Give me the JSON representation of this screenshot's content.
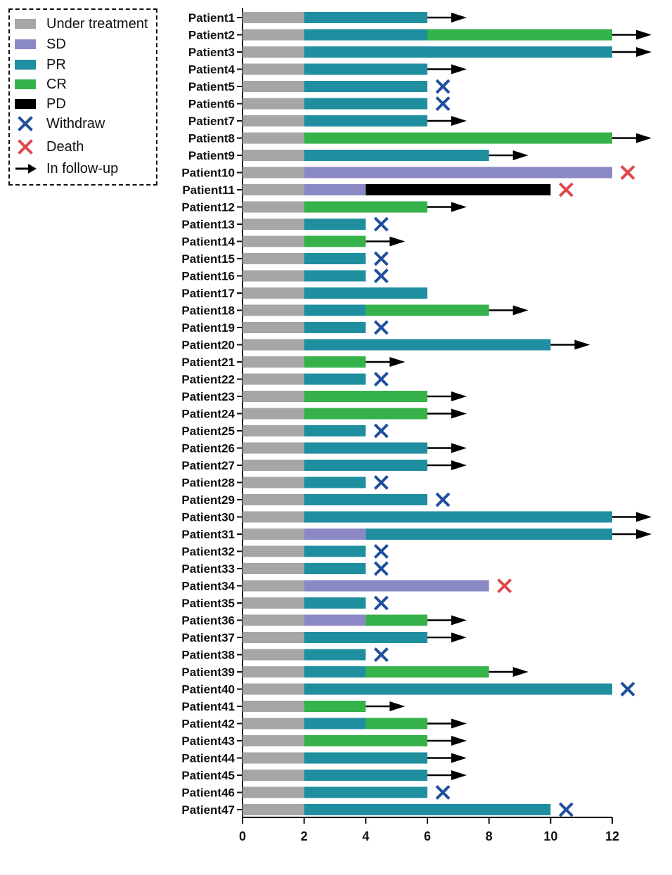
{
  "chart_data": {
    "type": "bar",
    "orientation": "horizontal",
    "stacked": true,
    "xlim": [
      0,
      12
    ],
    "xticks": [
      "0",
      "2",
      "4",
      "6",
      "8",
      "10",
      "12"
    ],
    "legend": {
      "placement": "top-left",
      "entries": [
        {
          "label": "Under treatment",
          "kind": "bar",
          "key": "UT"
        },
        {
          "label": "SD",
          "kind": "bar",
          "key": "SD"
        },
        {
          "label": "PR",
          "kind": "bar",
          "key": "PR"
        },
        {
          "label": "CR",
          "kind": "bar",
          "key": "CR"
        },
        {
          "label": "PD",
          "kind": "bar",
          "key": "PD"
        },
        {
          "label": "Withdraw",
          "kind": "marker",
          "key": "withdraw"
        },
        {
          "label": "Death",
          "kind": "marker",
          "key": "death"
        },
        {
          "label": "In follow-up",
          "kind": "marker",
          "key": "followup"
        }
      ]
    },
    "colors": {
      "UT": "#a6a6a8",
      "SD": "#8b88c6",
      "PR": "#1f8fa0",
      "CR": "#35b24a",
      "PD": "#000000",
      "withdraw": "#1f4e9c",
      "death": "#e04848",
      "followup": "#000000"
    },
    "patients": [
      {
        "label": "Patient1",
        "segments": [
          [
            "UT",
            0,
            2
          ],
          [
            "PR",
            2,
            6
          ]
        ],
        "end": "followup"
      },
      {
        "label": "Patient2",
        "segments": [
          [
            "UT",
            0,
            2
          ],
          [
            "PR",
            2,
            6
          ],
          [
            "CR",
            6,
            12
          ]
        ],
        "end": "followup"
      },
      {
        "label": "Patient3",
        "segments": [
          [
            "UT",
            0,
            2
          ],
          [
            "PR",
            2,
            12
          ]
        ],
        "end": "followup"
      },
      {
        "label": "Patient4",
        "segments": [
          [
            "UT",
            0,
            2
          ],
          [
            "PR",
            2,
            6
          ]
        ],
        "end": "followup"
      },
      {
        "label": "Patient5",
        "segments": [
          [
            "UT",
            0,
            2
          ],
          [
            "PR",
            2,
            6
          ]
        ],
        "end": "withdraw"
      },
      {
        "label": "Patient6",
        "segments": [
          [
            "UT",
            0,
            2
          ],
          [
            "PR",
            2,
            6
          ]
        ],
        "end": "withdraw"
      },
      {
        "label": "Patient7",
        "segments": [
          [
            "UT",
            0,
            2
          ],
          [
            "PR",
            2,
            6
          ]
        ],
        "end": "followup"
      },
      {
        "label": "Patient8",
        "segments": [
          [
            "UT",
            0,
            2
          ],
          [
            "CR",
            2,
            12
          ]
        ],
        "end": "followup"
      },
      {
        "label": "Patient9",
        "segments": [
          [
            "UT",
            0,
            2
          ],
          [
            "PR",
            2,
            8
          ]
        ],
        "end": "followup"
      },
      {
        "label": "Patient10",
        "segments": [
          [
            "UT",
            0,
            2
          ],
          [
            "SD",
            2,
            12
          ]
        ],
        "end": "death"
      },
      {
        "label": "Patient11",
        "segments": [
          [
            "UT",
            0,
            2
          ],
          [
            "SD",
            2,
            4
          ],
          [
            "PD",
            4,
            10
          ]
        ],
        "end": "death"
      },
      {
        "label": "Patient12",
        "segments": [
          [
            "UT",
            0,
            2
          ],
          [
            "CR",
            2,
            6
          ]
        ],
        "end": "followup"
      },
      {
        "label": "Patient13",
        "segments": [
          [
            "UT",
            0,
            2
          ],
          [
            "PR",
            2,
            4
          ]
        ],
        "end": "withdraw"
      },
      {
        "label": "Patient14",
        "segments": [
          [
            "UT",
            0,
            2
          ],
          [
            "CR",
            2,
            4
          ]
        ],
        "end": "followup"
      },
      {
        "label": "Patient15",
        "segments": [
          [
            "UT",
            0,
            2
          ],
          [
            "PR",
            2,
            4
          ]
        ],
        "end": "withdraw"
      },
      {
        "label": "Patient16",
        "segments": [
          [
            "UT",
            0,
            2
          ],
          [
            "PR",
            2,
            4
          ]
        ],
        "end": "withdraw"
      },
      {
        "label": "Patient17",
        "segments": [
          [
            "UT",
            0,
            2
          ],
          [
            "PR",
            2,
            6
          ]
        ],
        "end": "none"
      },
      {
        "label": "Patient18",
        "segments": [
          [
            "UT",
            0,
            2
          ],
          [
            "PR",
            2,
            4
          ],
          [
            "CR",
            4,
            8
          ]
        ],
        "end": "followup"
      },
      {
        "label": "Patient19",
        "segments": [
          [
            "UT",
            0,
            2
          ],
          [
            "PR",
            2,
            4
          ]
        ],
        "end": "withdraw"
      },
      {
        "label": "Patient20",
        "segments": [
          [
            "UT",
            0,
            2
          ],
          [
            "PR",
            2,
            10
          ]
        ],
        "end": "followup"
      },
      {
        "label": "Patient21",
        "segments": [
          [
            "UT",
            0,
            2
          ],
          [
            "CR",
            2,
            4
          ]
        ],
        "end": "followup"
      },
      {
        "label": "Patient22",
        "segments": [
          [
            "UT",
            0,
            2
          ],
          [
            "PR",
            2,
            4
          ]
        ],
        "end": "withdraw"
      },
      {
        "label": "Patient23",
        "segments": [
          [
            "UT",
            0,
            2
          ],
          [
            "CR",
            2,
            6
          ]
        ],
        "end": "followup"
      },
      {
        "label": "Patient24",
        "segments": [
          [
            "UT",
            0,
            2
          ],
          [
            "CR",
            2,
            6
          ]
        ],
        "end": "followup"
      },
      {
        "label": "Patient25",
        "segments": [
          [
            "UT",
            0,
            2
          ],
          [
            "PR",
            2,
            4
          ]
        ],
        "end": "withdraw"
      },
      {
        "label": "Patient26",
        "segments": [
          [
            "UT",
            0,
            2
          ],
          [
            "PR",
            2,
            6
          ]
        ],
        "end": "followup"
      },
      {
        "label": "Patient27",
        "segments": [
          [
            "UT",
            0,
            2
          ],
          [
            "PR",
            2,
            6
          ]
        ],
        "end": "followup"
      },
      {
        "label": "Patient28",
        "segments": [
          [
            "UT",
            0,
            2
          ],
          [
            "PR",
            2,
            4
          ]
        ],
        "end": "withdraw"
      },
      {
        "label": "Patient29",
        "segments": [
          [
            "UT",
            0,
            2
          ],
          [
            "PR",
            2,
            6
          ]
        ],
        "end": "withdraw"
      },
      {
        "label": "Patient30",
        "segments": [
          [
            "UT",
            0,
            2
          ],
          [
            "PR",
            2,
            12
          ]
        ],
        "end": "followup"
      },
      {
        "label": "Patient31",
        "segments": [
          [
            "UT",
            0,
            2
          ],
          [
            "SD",
            2,
            4
          ],
          [
            "PR",
            4,
            12
          ]
        ],
        "end": "followup"
      },
      {
        "label": "Patient32",
        "segments": [
          [
            "UT",
            0,
            2
          ],
          [
            "PR",
            2,
            4
          ]
        ],
        "end": "withdraw"
      },
      {
        "label": "Patient33",
        "segments": [
          [
            "UT",
            0,
            2
          ],
          [
            "PR",
            2,
            4
          ]
        ],
        "end": "withdraw"
      },
      {
        "label": "Patient34",
        "segments": [
          [
            "UT",
            0,
            2
          ],
          [
            "SD",
            2,
            8
          ]
        ],
        "end": "death"
      },
      {
        "label": "Patient35",
        "segments": [
          [
            "UT",
            0,
            2
          ],
          [
            "PR",
            2,
            4
          ]
        ],
        "end": "withdraw"
      },
      {
        "label": "Patient36",
        "segments": [
          [
            "UT",
            0,
            2
          ],
          [
            "SD",
            2,
            4
          ],
          [
            "CR",
            4,
            6
          ]
        ],
        "end": "followup"
      },
      {
        "label": "Patient37",
        "segments": [
          [
            "UT",
            0,
            2
          ],
          [
            "PR",
            2,
            6
          ]
        ],
        "end": "followup"
      },
      {
        "label": "Patient38",
        "segments": [
          [
            "UT",
            0,
            2
          ],
          [
            "PR",
            2,
            4
          ]
        ],
        "end": "withdraw"
      },
      {
        "label": "Patient39",
        "segments": [
          [
            "UT",
            0,
            2
          ],
          [
            "PR",
            2,
            4
          ],
          [
            "CR",
            4,
            8
          ]
        ],
        "end": "followup"
      },
      {
        "label": "Patient40",
        "segments": [
          [
            "UT",
            0,
            2
          ],
          [
            "PR",
            2,
            12
          ]
        ],
        "end": "withdraw"
      },
      {
        "label": "Patient41",
        "segments": [
          [
            "UT",
            0,
            2
          ],
          [
            "CR",
            2,
            4
          ]
        ],
        "end": "followup"
      },
      {
        "label": "Patient42",
        "segments": [
          [
            "UT",
            0,
            2
          ],
          [
            "PR",
            2,
            4
          ],
          [
            "CR",
            4,
            6
          ]
        ],
        "end": "followup"
      },
      {
        "label": "Patient43",
        "segments": [
          [
            "UT",
            0,
            2
          ],
          [
            "CR",
            2,
            6
          ]
        ],
        "end": "followup"
      },
      {
        "label": "Patient44",
        "segments": [
          [
            "UT",
            0,
            2
          ],
          [
            "PR",
            2,
            6
          ]
        ],
        "end": "followup"
      },
      {
        "label": "Patient45",
        "segments": [
          [
            "UT",
            0,
            2
          ],
          [
            "PR",
            2,
            6
          ]
        ],
        "end": "followup"
      },
      {
        "label": "Patient46",
        "segments": [
          [
            "UT",
            0,
            2
          ],
          [
            "PR",
            2,
            6
          ]
        ],
        "end": "withdraw"
      },
      {
        "label": "Patient47",
        "segments": [
          [
            "UT",
            0,
            2
          ],
          [
            "PR",
            2,
            10
          ]
        ],
        "end": "withdraw"
      }
    ]
  }
}
